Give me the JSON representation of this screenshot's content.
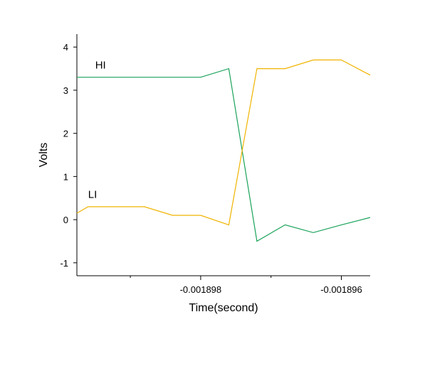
{
  "chart_data": {
    "type": "line",
    "xlabel": "Time(second)",
    "ylabel": "Volts",
    "xlim": [
      -0.00189976,
      -0.00189559
    ],
    "ylim": [
      -1.3,
      4.3
    ],
    "x_ticks": [
      {
        "value": -0.001898,
        "label": "-0.001898"
      },
      {
        "value": -0.001896,
        "label": "-0.001896"
      }
    ],
    "x_minor_ticks": [
      -0.001899,
      -0.001897
    ],
    "y_ticks": [
      {
        "value": -1,
        "label": "-1"
      },
      {
        "value": 0,
        "label": "0"
      },
      {
        "value": 1,
        "label": "1"
      },
      {
        "value": 2,
        "label": "2"
      },
      {
        "value": 3,
        "label": "3"
      },
      {
        "value": 4,
        "label": "4"
      }
    ],
    "grid": false,
    "legend": "none",
    "annotations": [
      {
        "text": "HI",
        "x": -0.0018995,
        "y": 3.5
      },
      {
        "text": "LI",
        "x": -0.0018996,
        "y": 0.5
      }
    ],
    "series": [
      {
        "color": "#1aa35a",
        "x": [
          -0.00189976,
          -0.001898,
          -0.0018976,
          -0.0018972,
          -0.0018968,
          -0.0018964,
          -0.001896,
          -0.00189559
        ],
        "y": [
          3.3,
          3.3,
          3.5,
          -0.5,
          -0.12,
          -0.3,
          -0.12,
          0.05
        ]
      },
      {
        "color": "#f0b400",
        "x": [
          -0.00189976,
          -0.0018996,
          -0.0018988,
          -0.0018984,
          -0.001898,
          -0.0018976,
          -0.0018972,
          -0.0018968,
          -0.0018964,
          -0.001896,
          -0.00189559
        ],
        "y": [
          0.15,
          0.3,
          0.3,
          0.1,
          0.1,
          -0.12,
          3.5,
          3.5,
          3.7,
          3.7,
          3.35
        ]
      }
    ]
  }
}
